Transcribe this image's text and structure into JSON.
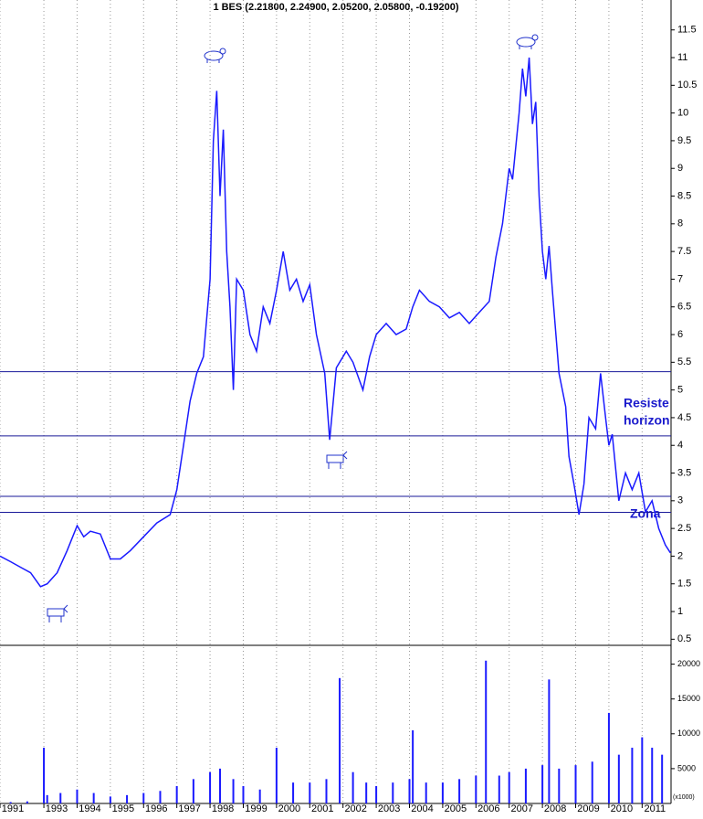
{
  "chart_data": [
    {
      "type": "line",
      "title": "1 BES (2.21800, 2.24900, 2.05200, 2.05800, -0.19200)",
      "xlim": [
        1991.68,
        2011.87
      ],
      "ylim": [
        0.39,
        12.04
      ],
      "yticks": [
        0.5,
        1.0,
        1.5,
        2.0,
        2.5,
        3.0,
        3.5,
        4.0,
        4.5,
        5.0,
        5.5,
        6.0,
        6.5,
        7.0,
        7.5,
        8.0,
        8.5,
        9.0,
        9.5,
        10.0,
        10.5,
        11.0,
        11.5
      ],
      "grid": true,
      "x": [
        1991.68,
        1992.0,
        1992.3,
        1992.6,
        1992.9,
        1993.1,
        1993.4,
        1993.7,
        1994.0,
        1994.2,
        1994.4,
        1994.7,
        1995.0,
        1995.3,
        1995.6,
        1996.0,
        1996.4,
        1996.8,
        1997.0,
        1997.2,
        1997.4,
        1997.6,
        1997.8,
        1998.0,
        1998.1,
        1998.2,
        1998.3,
        1998.4,
        1998.5,
        1998.6,
        1998.7,
        1998.8,
        1999.0,
        1999.2,
        1999.4,
        1999.6,
        1999.8,
        2000.0,
        2000.2,
        2000.4,
        2000.6,
        2000.8,
        2001.0,
        2001.2,
        2001.45,
        2001.6,
        2001.8,
        2002.1,
        2002.3,
        2002.6,
        2002.8,
        2003.0,
        2003.3,
        2003.6,
        2003.9,
        2004.1,
        2004.3,
        2004.6,
        2004.9,
        2005.2,
        2005.5,
        2005.8,
        2006.1,
        2006.4,
        2006.6,
        2006.8,
        2007.0,
        2007.1,
        2007.3,
        2007.4,
        2007.5,
        2007.6,
        2007.7,
        2007.8,
        2007.9,
        2008.0,
        2008.1,
        2008.2,
        2008.3,
        2008.5,
        2008.7,
        2008.8,
        2008.95,
        2009.1,
        2009.25,
        2009.4,
        2009.6,
        2009.75,
        2009.9,
        2010.0,
        2010.1,
        2010.3,
        2010.5,
        2010.7,
        2010.9,
        2011.1,
        2011.3,
        2011.5,
        2011.7,
        2011.85
      ],
      "series": [
        {
          "color": "#1a1aff",
          "values": [
            2.0,
            1.9,
            1.8,
            1.7,
            1.45,
            1.5,
            1.7,
            2.1,
            2.55,
            2.35,
            2.45,
            2.4,
            1.95,
            1.95,
            2.1,
            2.35,
            2.6,
            2.75,
            3.2,
            4.0,
            4.8,
            5.3,
            5.6,
            7.0,
            9.5,
            10.4,
            8.5,
            9.7,
            7.5,
            6.5,
            5.0,
            7.0,
            6.8,
            6.0,
            5.7,
            6.5,
            6.2,
            6.8,
            7.5,
            6.8,
            7.0,
            6.6,
            6.9,
            6.0,
            5.3,
            4.1,
            5.4,
            5.7,
            5.5,
            5.0,
            5.6,
            6.0,
            6.2,
            6.0,
            6.1,
            6.5,
            6.8,
            6.6,
            6.5,
            6.3,
            6.4,
            6.2,
            6.4,
            6.6,
            7.4,
            8.0,
            9.0,
            8.8,
            10.0,
            10.8,
            10.3,
            11.0,
            9.8,
            10.2,
            8.5,
            7.5,
            7.0,
            7.6,
            6.8,
            5.3,
            4.7,
            3.8,
            3.3,
            2.75,
            3.3,
            4.5,
            4.3,
            5.3,
            4.5,
            4.0,
            4.2,
            3.0,
            3.5,
            3.2,
            3.5,
            2.8,
            3.0,
            2.5,
            2.2,
            2.06
          ]
        }
      ],
      "hlines": [
        5.33,
        4.17,
        3.08,
        2.79
      ],
      "hline_color": "#1a1a99",
      "annotations": [
        "Resiste",
        "horizon",
        "Zona"
      ]
    },
    {
      "type": "bar",
      "xlim": [
        1991.68,
        2011.87
      ],
      "ylim": [
        0,
        22700
      ],
      "yticks": [
        5000,
        10000,
        15000,
        20000
      ],
      "unit_label": "(x1000)",
      "xticks": [
        {
          "value": 1991.68,
          "label": "1991"
        },
        1993,
        1994,
        1995,
        1996,
        1997,
        1998,
        1999,
        2000,
        2001,
        2002,
        2003,
        2004,
        2005,
        2006,
        2007,
        2008,
        2009,
        2010,
        2011
      ],
      "x": [
        1992.0,
        1992.5,
        1993.0,
        1993.1,
        1993.5,
        1994.0,
        1994.5,
        1995.0,
        1995.5,
        1996.0,
        1996.5,
        1997.0,
        1997.5,
        1998.0,
        1998.3,
        1998.7,
        1999.0,
        1999.5,
        2000.0,
        2000.5,
        2001.0,
        2001.5,
        2001.9,
        2002.3,
        2002.7,
        2003.0,
        2003.5,
        2004.0,
        2004.1,
        2004.5,
        2005.0,
        2005.5,
        2006.0,
        2006.3,
        2006.7,
        2007.0,
        2007.5,
        2008.0,
        2008.2,
        2008.5,
        2009.0,
        2009.5,
        2010.0,
        2010.3,
        2010.7,
        2011.0,
        2011.3,
        2011.6
      ],
      "series": [
        {
          "color": "#1a1aff",
          "values": [
            200,
            300,
            8000,
            1200,
            1500,
            2000,
            1500,
            1000,
            1200,
            1500,
            1800,
            2500,
            3500,
            4500,
            5000,
            3500,
            2500,
            2000,
            8000,
            3000,
            3000,
            3500,
            18000,
            4500,
            3000,
            2500,
            3000,
            3500,
            10500,
            3000,
            3000,
            3500,
            4000,
            20500,
            4000,
            4500,
            5000,
            5500,
            17800,
            5000,
            5500,
            6000,
            13000,
            7000,
            8000,
            9500,
            8000,
            7000
          ]
        }
      ]
    }
  ]
}
